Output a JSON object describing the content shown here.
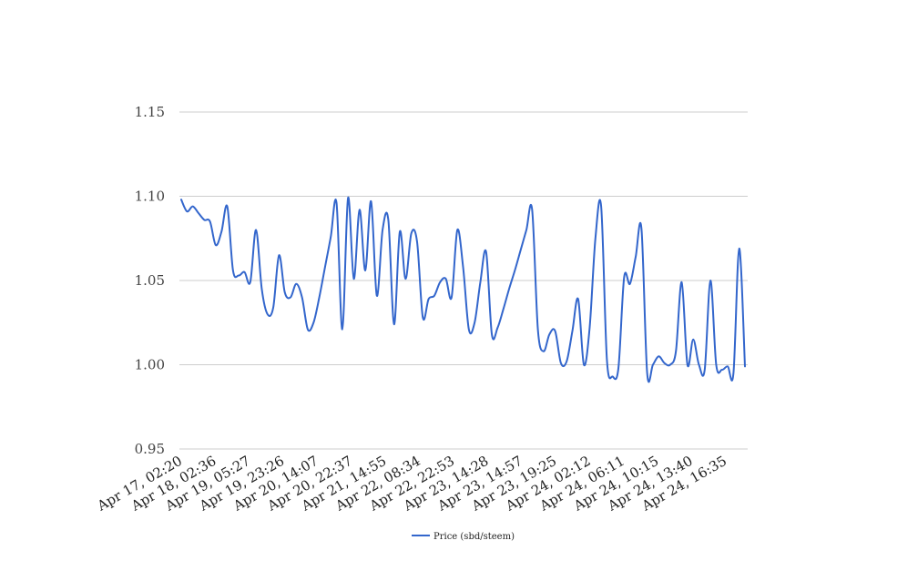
{
  "chart_data": {
    "type": "line",
    "title": "",
    "xlabel": "",
    "ylabel": "",
    "ylim": [
      0.95,
      1.15
    ],
    "yticks": [
      0.95,
      1.0,
      1.05,
      1.1,
      1.15
    ],
    "ytick_labels": [
      "0.95",
      "1.00",
      "1.05",
      "1.10",
      "1.15"
    ],
    "grid": true,
    "legend_position": "bottom",
    "x_tick_labels": [
      "Apr 17, 02:20",
      "Apr 18, 02:36",
      "Apr 19, 05:27",
      "Apr 19, 23:26",
      "Apr 20, 14:07",
      "Apr 20, 22:37",
      "Apr 21, 14:55",
      "Apr 22, 08:34",
      "Apr 22, 22:53",
      "Apr 23, 14:28",
      "Apr 23, 14:57",
      "Apr 23, 19:25",
      "Apr 24, 02:12",
      "Apr 24, 06:11",
      "Apr 24, 10:15",
      "Apr 24, 13:40",
      "Apr 24, 16:35"
    ],
    "series": [
      {
        "name": "Price (sbd/steem)",
        "color": "#3366cc",
        "values": [
          1.098,
          1.091,
          1.094,
          1.09,
          1.086,
          1.085,
          1.071,
          1.079,
          1.094,
          1.056,
          1.053,
          1.055,
          1.049,
          1.08,
          1.045,
          1.03,
          1.034,
          1.065,
          1.043,
          1.04,
          1.048,
          1.04,
          1.021,
          1.025,
          1.04,
          1.058,
          1.076,
          1.096,
          1.021,
          1.099,
          1.051,
          1.092,
          1.056,
          1.097,
          1.041,
          1.08,
          1.086,
          1.024,
          1.079,
          1.051,
          1.078,
          1.073,
          1.028,
          1.039,
          1.041,
          1.049,
          1.051,
          1.04,
          1.08,
          1.058,
          1.021,
          1.025,
          1.049,
          1.067,
          1.018,
          1.022,
          1.033,
          1.045,
          1.056,
          1.068,
          1.08,
          1.092,
          1.021,
          1.008,
          1.018,
          1.02,
          1.001,
          1.002,
          1.02,
          1.039,
          1.0,
          1.022,
          1.075,
          1.094,
          1.003,
          0.993,
          0.998,
          1.052,
          1.048,
          1.064,
          1.081,
          0.995,
          1.0,
          1.005,
          1.001,
          1.0,
          1.008,
          1.049,
          1.0,
          1.015,
          1.0,
          0.997,
          1.05,
          1.0,
          0.997,
          0.999,
          0.995,
          1.069,
          0.999
        ]
      }
    ]
  }
}
